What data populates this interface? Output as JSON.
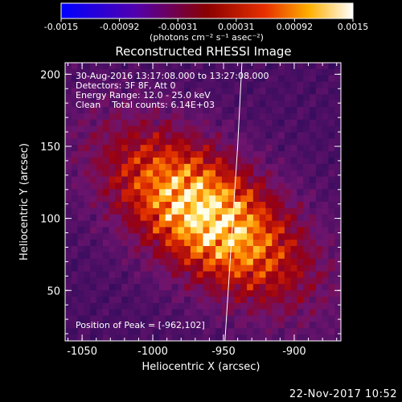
{
  "colorbar": {
    "tick_labels": [
      "-0.0015",
      "-0.00092",
      "-0.00031",
      "0.00031",
      "0.00092",
      "0.0015"
    ],
    "range": [
      -0.0015,
      0.0015
    ],
    "unit_label": "(photons cm⁻² s⁻¹ asec⁻²)"
  },
  "header": {
    "title": "Reconstructed RHESSI Image"
  },
  "annotations": {
    "time_range": "30-Aug-2016 13:17:08.000 to 13:27:08.000",
    "detectors": "Detectors: 3F 8F, Att 0",
    "energy": "Energy Range: 12.0 - 25.0 keV",
    "clean": "Clean    Total counts: 6.14E+03",
    "peak": "Position of Peak = [-962,102]"
  },
  "chart_data": {
    "type": "heatmap",
    "title": "Reconstructed RHESSI Image",
    "xlabel": "Heliocentric X (arcsec)",
    "ylabel": "Heliocentric Y (arcsec)",
    "xlim": [
      -1062,
      -867
    ],
    "ylim": [
      15,
      208
    ],
    "x_ticks": [
      -1050,
      -1000,
      -950,
      -900
    ],
    "y_ticks": [
      50,
      100,
      150,
      200
    ],
    "x_tick_labels": [
      "-1050",
      "-1000",
      "-950",
      "-900"
    ],
    "y_tick_labels": [
      "50",
      "100",
      "150",
      "200"
    ],
    "peak": {
      "x": -962,
      "y": 102
    },
    "colormap": "red-temperature",
    "limb_curve": [
      [
        -949,
        15
      ],
      [
        -946,
        60
      ],
      [
        -943,
        105
      ],
      [
        -940,
        150
      ],
      [
        -937,
        208
      ]
    ]
  },
  "footer": {
    "timestamp": "22-Nov-2017 10:52"
  }
}
